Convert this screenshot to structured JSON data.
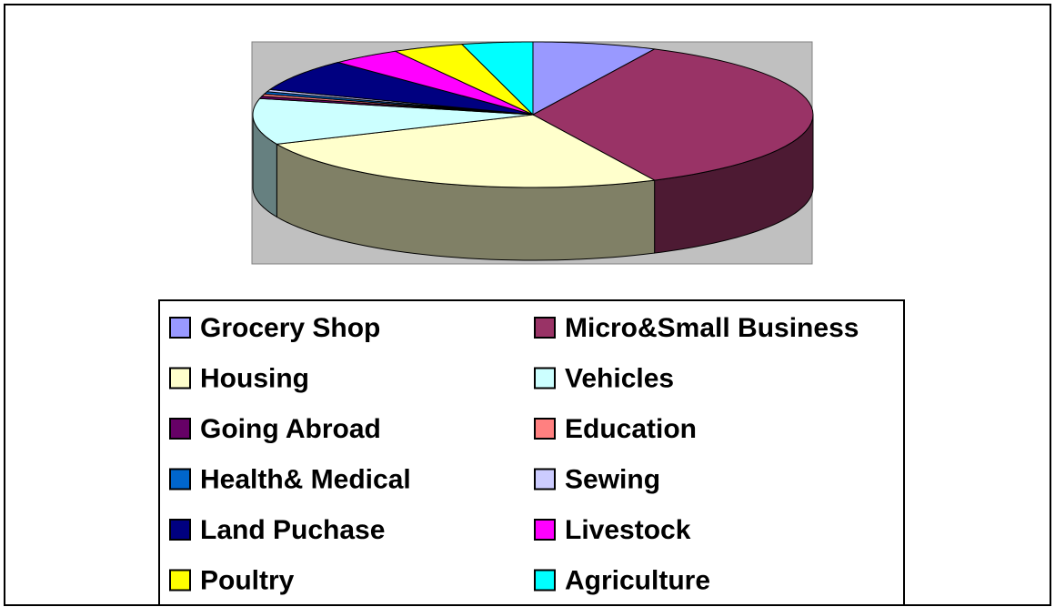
{
  "chart_data": {
    "type": "pie3d",
    "categories": [
      "Grocery Shop",
      "Micro&Small Business",
      "Housing",
      "Vehicles",
      "Going Abroad",
      "Education",
      "Health& Medical",
      "Sewing",
      "Land Puchase",
      "Livestock",
      "Poultry",
      "Agriculture"
    ],
    "values": [
      7,
      35,
      25,
      10,
      0.5,
      0.5,
      0.5,
      0.5,
      7,
      4,
      4,
      4
    ],
    "colors": [
      "#9999ff",
      "#993366",
      "#ffffcc",
      "#ccffff",
      "#660066",
      "#ff8080",
      "#0066cc",
      "#ccccff",
      "#000080",
      "#ff00ff",
      "#ffff00",
      "#00ffff"
    ],
    "legend": "bottom"
  }
}
